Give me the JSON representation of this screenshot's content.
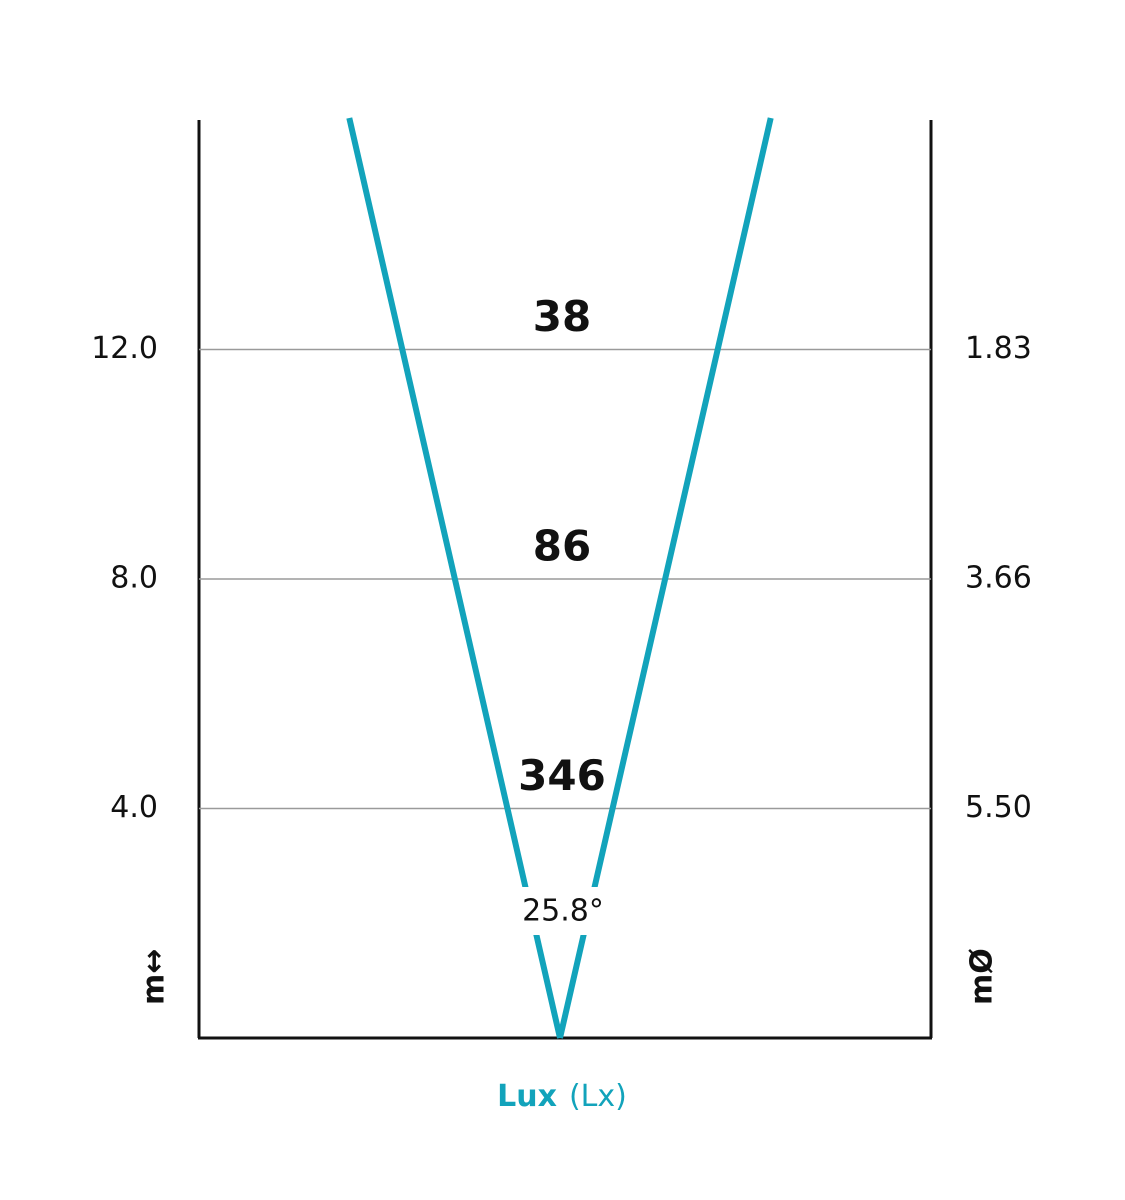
{
  "chart_data": {
    "type": "beam",
    "beam_angle": 25.8,
    "beam_angle_label": "25.8°",
    "color": "#12a3bb",
    "x_label": "Lux",
    "x_unit": "(Lx)",
    "y_label": "m↔",
    "y2_label": "mØ",
    "ylim": [
      0,
      16
    ],
    "yticks": [
      {
        "value": 4,
        "label": "4.0"
      },
      {
        "value": 8,
        "label": "8.0"
      },
      {
        "value": 12,
        "label": "12.0"
      }
    ],
    "diameter_labels": [
      "5.50",
      "3.66",
      "1.83"
    ],
    "lux": [
      346,
      86,
      38
    ],
    "grid": true
  }
}
